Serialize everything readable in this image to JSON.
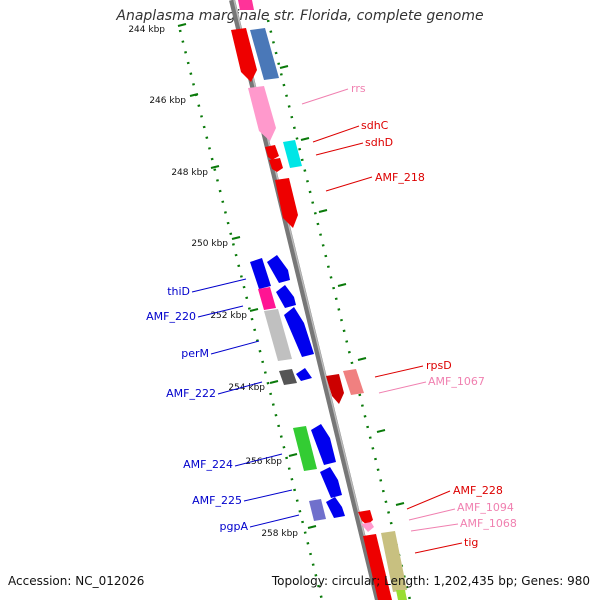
{
  "title": "Anaplasma marginale str. Florida, complete genome",
  "footer": {
    "accession": "Accession: NC_012026",
    "summary": "Topology: circular; Length: 1,202,435 bp; Genes: 980"
  },
  "colors": {
    "forward_label": "#0000cc",
    "reverse_label": "#dd0000",
    "pale_label": "#f080b0",
    "tick": "#008800"
  },
  "ticks": [
    "244 kbp",
    "246 kbp",
    "248 kbp",
    "250 kbp",
    "252 kbp",
    "254 kbp",
    "256 kbp",
    "258 kbp"
  ],
  "forward_labels": [
    "thiD",
    "AMF_220",
    "perM",
    "AMF_222",
    "AMF_224",
    "AMF_225",
    "pgpA"
  ],
  "reverse_labels": [
    {
      "text": "rrs",
      "tone": "pale"
    },
    {
      "text": "sdhC",
      "tone": "red"
    },
    {
      "text": "sdhD",
      "tone": "red"
    },
    {
      "text": "AMF_218",
      "tone": "red"
    },
    {
      "text": "rpsD",
      "tone": "red"
    },
    {
      "text": "AMF_1067",
      "tone": "pale"
    },
    {
      "text": "AMF_228",
      "tone": "red"
    },
    {
      "text": "AMF_1094",
      "tone": "pale"
    },
    {
      "text": "AMF_1068",
      "tone": "pale"
    },
    {
      "text": "tig",
      "tone": "red"
    }
  ]
}
